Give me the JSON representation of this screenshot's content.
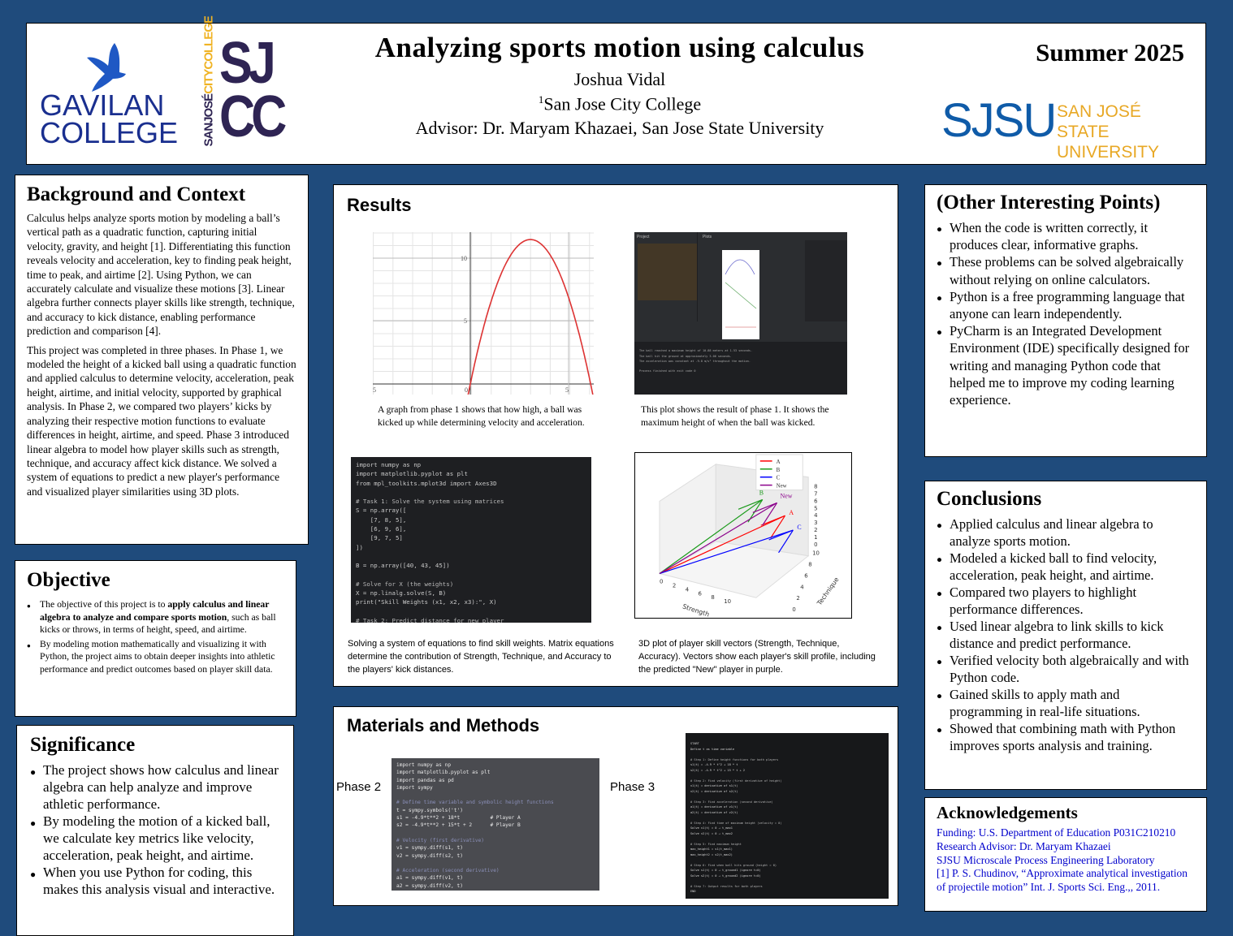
{
  "header": {
    "title": "Analyzing sports motion using calculus",
    "author": "Joshua Vidal",
    "affiliation_sup": "1",
    "affiliation": "San Jose City College",
    "advisor": "Advisor: Dr. Maryam Khazaei, San Jose State University",
    "season": "Summer 2025",
    "logos": {
      "gavilan": [
        "GAVILAN",
        "COLLEGE"
      ],
      "sjcc": {
        "side": "SANJOSÉ",
        "side2": "CITYCOLLEGE",
        "big1": "SJ",
        "big2": "CC"
      },
      "sjsu": {
        "mark": "SJSU",
        "line1": "SAN JOSÉ STATE",
        "line2": "UNIVERSITY"
      }
    },
    "colors": {
      "gavilan": "#1a2f8f",
      "sjcc": "#2e2453",
      "sjcc_accent": "#f0b323",
      "sjsu_blue": "#0f5ba8",
      "sjsu_gold": "#e8a825"
    }
  },
  "background": {
    "title": "Background and Context",
    "paragraphs": [
      "Calculus helps analyze sports motion by modeling a ball’s vertical path as a quadratic function, capturing initial velocity, gravity, and height [1]. Differentiating this function reveals velocity and acceleration, key to finding peak height, time to peak, and airtime [2]. Using Python, we can accurately calculate and visualize these motions [3]. Linear algebra further connects player skills like strength, technique, and accuracy to kick distance, enabling performance prediction and comparison [4].",
      "This project was completed in three phases. In Phase 1, we modeled the height of a kicked ball using a quadratic function and applied calculus to determine velocity, acceleration, peak height, airtime, and initial velocity, supported by graphical analysis. In Phase 2, we compared two players’ kicks by analyzing their respective motion functions to evaluate differences in height, airtime, and speed. Phase 3 introduced linear algebra to model how player skills such as strength, technique, and accuracy affect kick distance. We solved a system of equations to predict a new player's performance and visualized player similarities using 3D plots."
    ]
  },
  "objective": {
    "title": "Objective",
    "items": [
      {
        "pre": "The objective of this project is to ",
        "bold": "apply calculus and linear algebra to analyze and compare sports motion",
        "post": ", such as ball kicks or throws, in terms of height, speed, and airtime."
      },
      {
        "pre": " By modeling motion mathematically and visualizing it with Python, the project aims to obtain deeper insights into athletic performance and predict outcomes based on player skill data.",
        "bold": "",
        "post": ""
      }
    ]
  },
  "significance": {
    "title": "Significance",
    "items": [
      "The project shows how calculus and linear algebra can help analyze and improve athletic performance.",
      "By modeling the motion of a kicked ball, we calculate key metrics like velocity, acceleration, peak height, and airtime.",
      "When you use Python for coding, this makes this analysis visual and interactive."
    ]
  },
  "results": {
    "title": "Results",
    "graph1": {
      "yticks": [
        "10",
        "5"
      ],
      "xticks": [
        "5",
        "0",
        "5"
      ],
      "caption": "A graph from phase 1 shows that how high, a ball was kicked up while determining velocity and acceleration."
    },
    "graph2": {
      "caption": "This plot shows the result of phase 1. It shows the maximum height of when the ball was kicked.",
      "tabs": [
        "Project",
        "Plots"
      ],
      "console": [
        "The ball reached a maximum height of 10.88 meters at 1.53 seconds.",
        "The ball hit the ground at approximately 3.06 seconds.",
        "The acceleration was constant at -9.8 m/s² throughout the motion.",
        "Process finished with exit code 0"
      ]
    },
    "code1": {
      "lines": [
        "import numpy as np",
        "import matplotlib.pyplot as plt",
        "from mpl_toolkits.mplot3d import Axes3D",
        "",
        "# Task 1: Solve the system using matrices",
        "S = np.array([",
        "    [7, 8, 5],",
        "    [6, 9, 6],",
        "    [9, 7, 5]",
        "])",
        "",
        "B = np.array([40, 43, 45])",
        "",
        "# Solve for X (the weights)",
        "X = np.linalg.solve(S, B)",
        "print(\"Skill Weights (x1, x2, x3):\", X)",
        "",
        "# Task 2: Predict distance for new player"
      ],
      "caption": "Solving a system of equations to find skill weights. Matrix equations determine the contribution of Strength, Technique, and Accuracy to the players' kick distances."
    },
    "plot3d": {
      "legend": [
        {
          "name": "A",
          "color": "#ff0000"
        },
        {
          "name": "B",
          "color": "#1a9a1a"
        },
        {
          "name": "C",
          "color": "#0000ff"
        },
        {
          "name": "New",
          "color": "#8b008b"
        }
      ],
      "xlabel": "Strength",
      "ylabel": "Technique",
      "xticks": [
        "0",
        "2",
        "4",
        "6",
        "8",
        "10"
      ],
      "yticks": [
        "0",
        "2",
        "4",
        "6",
        "8",
        "10"
      ],
      "zticks": [
        "0",
        "1",
        "2",
        "3",
        "4",
        "5",
        "6",
        "7",
        "8"
      ],
      "caption": "3D plot of player skill vectors (Strength, Technique, Accuracy). Vectors show each player's skill profile, including the predicted \"New\" player in purple."
    }
  },
  "methods": {
    "title": "Materials and Methods",
    "phase2_label": "Phase 2",
    "phase3_label": "Phase 3",
    "phase2_code": [
      "import numpy as np",
      "import matplotlib.pyplot as plt",
      "import pandas as pd",
      "import sympy",
      "",
      "# Define time variable and symbolic height functions",
      "t = sympy.symbols('t')",
      "s1 = -4.9*t**2 + 18*t          # Player A",
      "s2 = -4.9*t**2 + 15*t + 2      # Player B",
      "",
      "# Velocity (first derivative)",
      "v1 = sympy.diff(s1, t)",
      "v2 = sympy.diff(s2, t)",
      "",
      "# Acceleration (second derivative)",
      "a1 = sympy.diff(v1, t)",
      "a2 = sympy.diff(v2, t)"
    ],
    "phase3_code": [
      "START",
      "Define t as time variable",
      "",
      "# Step 1: Define height functions for both players",
      "s1(t) = -4.9 * t^2 + 18 * t",
      "s2(t) = -4.9 * t^2 + 15 * t + 2",
      "",
      "# Step 2: Find velocity (first derivative of height)",
      "v1(t) = derivative of s1(t)",
      "v2(t) = derivative of s2(t)",
      "",
      "# Step 3: Find acceleration (second derivative)",
      "a1(t) = derivative of v1(t)",
      "a2(t) = derivative of v2(t)",
      "",
      "# Step 4: Find time of maximum height (velocity = 0)",
      "Solve v1(t) = 0 → t_max1",
      "Solve v2(t) = 0 → t_max2",
      "",
      "# Step 5: Find maximum height",
      "max_height1 = s1(t_max1)",
      "max_height2 = s2(t_max2)",
      "",
      "# Step 6: Find when ball hits ground (height = 0)",
      "Solve s1(t) = 0 → t_ground1 (ignore t=0)",
      "Solve s2(t) = 0 → t_ground2 (ignore t=0)",
      "",
      "# Step 7: Output results for both players",
      "END"
    ]
  },
  "other": {
    "title": "(Other Interesting Points)",
    "items": [
      "When the code is written correctly, it produces clear, informative graphs.",
      "These problems can be solved algebraically without relying on online calculators.",
      "Python is a free programming language that anyone can learn independently.",
      "PyCharm is an Integrated Development Environment (IDE) specifically designed for writing and managing Python code that helped me to improve my coding learning experience."
    ]
  },
  "conclusions": {
    "title": "Conclusions",
    "items": [
      "Applied calculus and linear algebra to analyze sports motion.",
      "Modeled a kicked ball to find velocity, acceleration, peak height, and airtime.",
      "Compared two players to highlight performance differences.",
      "Used linear algebra to link skills to kick distance and predict performance.",
      "Verified velocity both algebraically and with Python code.",
      "Gained skills to apply math and programming in real-life situations.",
      "Showed that combining math with Python improves sports analysis and training."
    ]
  },
  "ack": {
    "title": "Acknowledgements",
    "lines": [
      "Funding:  U.S. Department of Education P031C210210",
      "Research Advisor:  Dr. Maryam Khazaei",
      "SJSU Microscale Process Engineering Laboratory",
      "[1] P. S. Chudinov, “Approximate analytical investigation of projectile motion” Int. J. Sports Sci. Eng.,, 2011."
    ],
    "color": "#0000cc"
  }
}
